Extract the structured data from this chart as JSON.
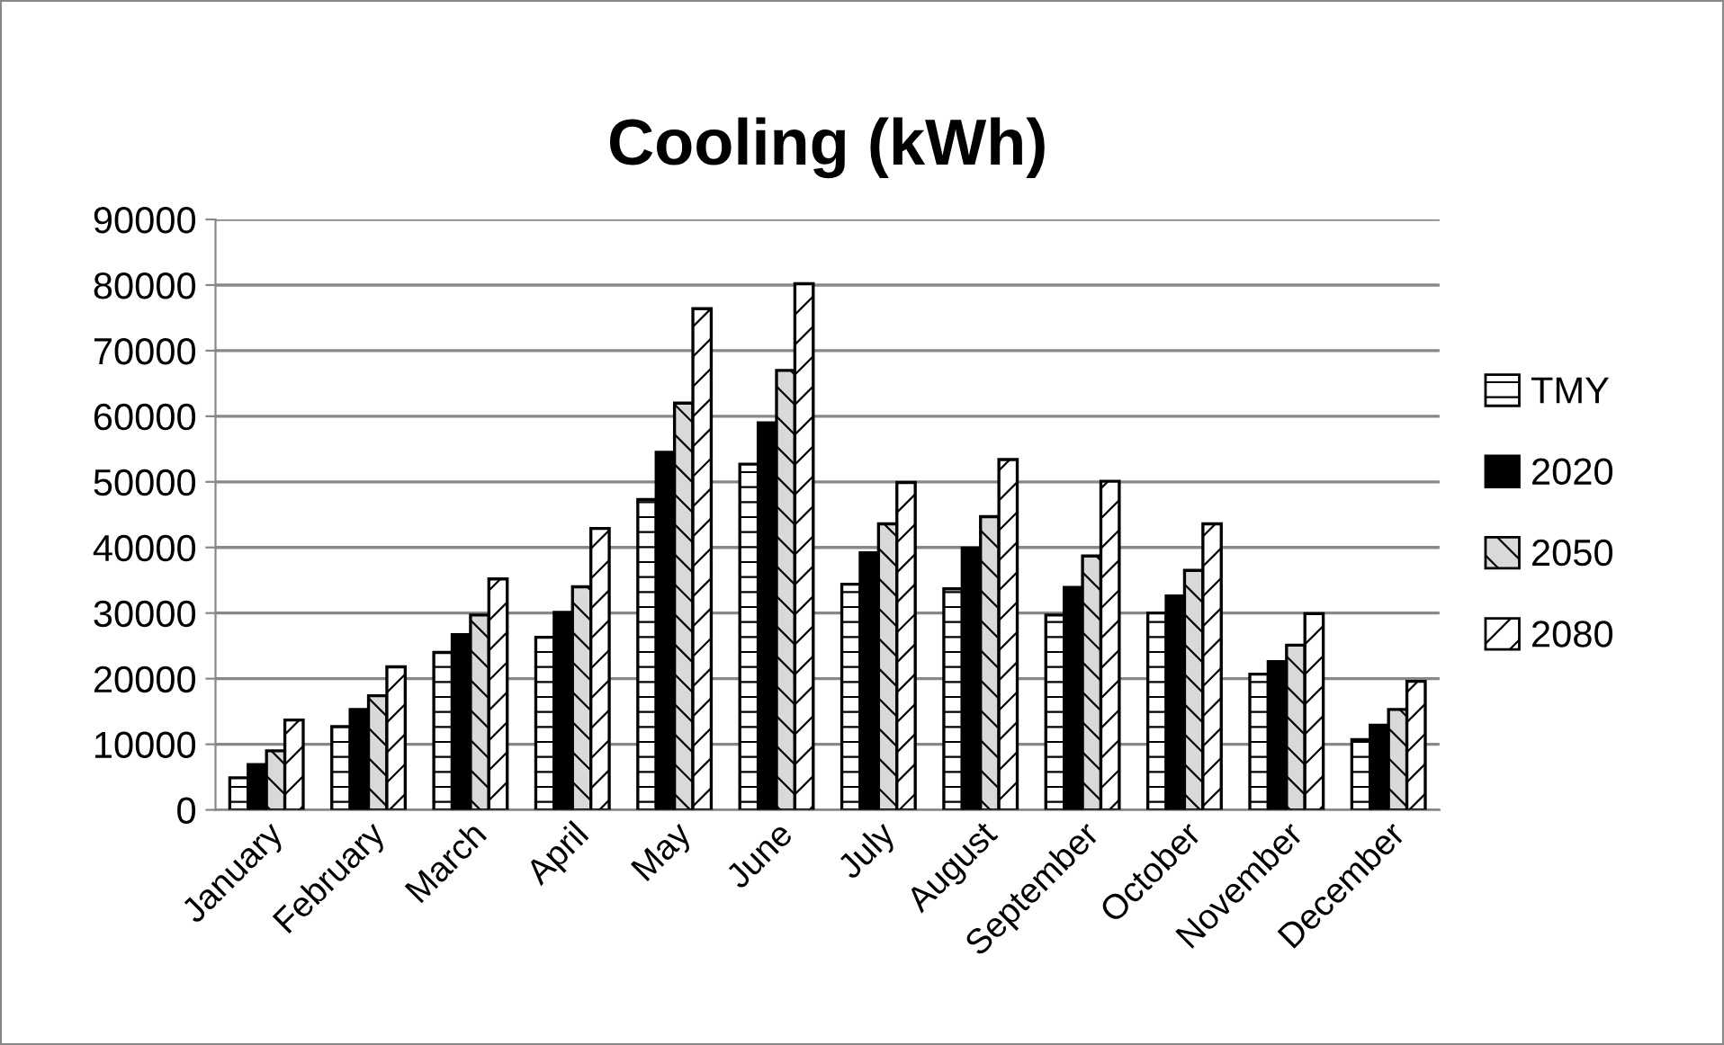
{
  "chart_data": {
    "type": "bar",
    "title": "Cooling (kWh)",
    "categories": [
      "January",
      "February",
      "March",
      "April",
      "May",
      "June",
      "July",
      "August",
      "September",
      "October",
      "November",
      "December"
    ],
    "series": [
      {
        "name": "TMY",
        "color": "#ffffff",
        "values": [
          4900,
          12700,
          24000,
          26300,
          47300,
          52700,
          34400,
          33700,
          29700,
          30000,
          20700,
          10700
        ]
      },
      {
        "name": "2020",
        "color": "#000000",
        "values": [
          6900,
          15300,
          26700,
          30100,
          54500,
          59000,
          39200,
          39900,
          33900,
          32600,
          22600,
          12900
        ]
      },
      {
        "name": "2050",
        "color": "#d9d9d9",
        "values": [
          9000,
          17400,
          29700,
          34000,
          62000,
          67000,
          43600,
          44700,
          38700,
          36500,
          25100,
          15300
        ]
      },
      {
        "name": "2080",
        "color": "#ffffff",
        "values": [
          13700,
          21800,
          35200,
          42900,
          76400,
          80200,
          49900,
          53400,
          50100,
          43600,
          29900,
          19600
        ]
      }
    ],
    "ylim": [
      0,
      90000
    ],
    "yticks": [
      0,
      10000,
      20000,
      30000,
      40000,
      50000,
      60000,
      70000,
      80000,
      90000
    ],
    "grid": "y",
    "legend": "right"
  }
}
